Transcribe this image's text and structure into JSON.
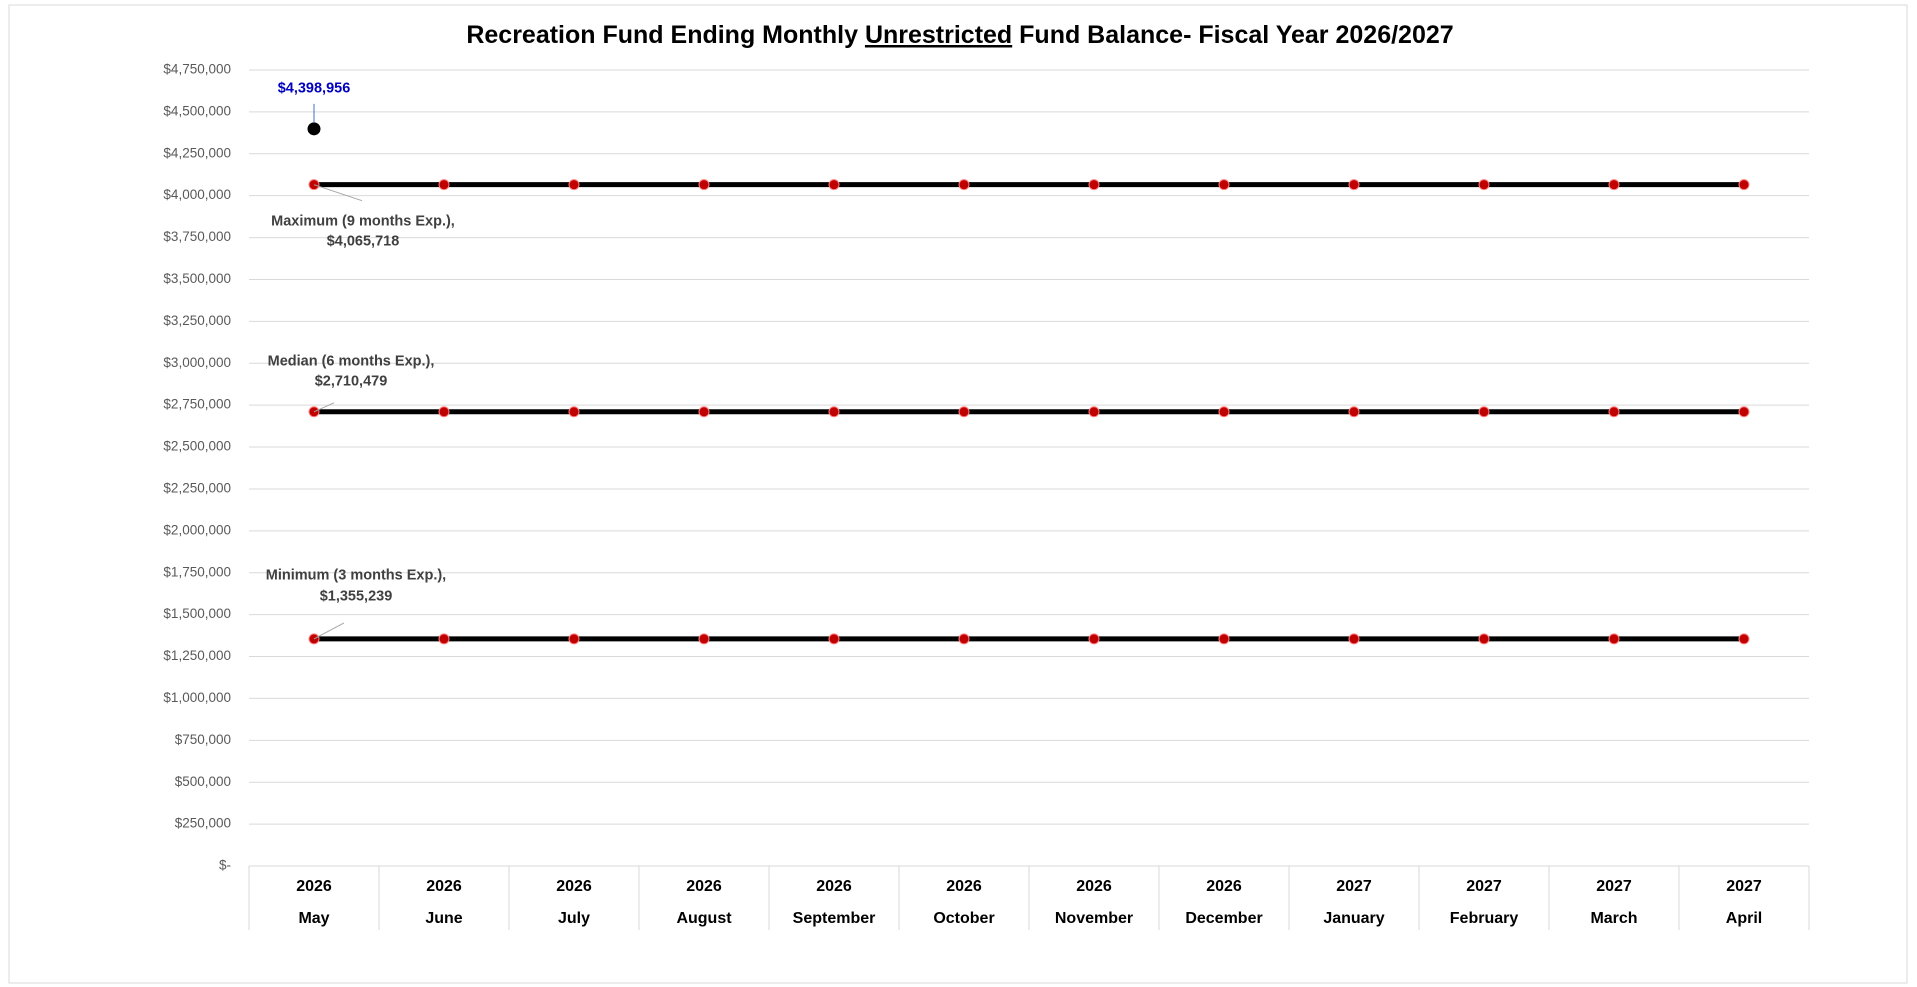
{
  "chart_data": {
    "type": "line",
    "title_parts": [
      {
        "text": "Recreation Fund Ending Monthly ",
        "underline": false
      },
      {
        "text": "Unrestricted",
        "underline": true
      },
      {
        "text": " Fund Balance- Fiscal Year 2026/2027",
        "underline": false
      }
    ],
    "categories": [
      "May",
      "June",
      "July",
      "August",
      "September",
      "October",
      "November",
      "December",
      "January",
      "February",
      "March",
      "April"
    ],
    "years": [
      "2026",
      "2026",
      "2026",
      "2026",
      "2026",
      "2026",
      "2026",
      "2026",
      "2027",
      "2027",
      "2027",
      "2027"
    ],
    "series": [
      {
        "name": "Maximum (9 months Exp.),",
        "color": "#000000",
        "marker_color": "#c00000",
        "values": [
          4065718,
          4065718,
          4065718,
          4065718,
          4065718,
          4065718,
          4065718,
          4065718,
          4065718,
          4065718,
          4065718,
          4065718
        ],
        "value_labels": [
          "$4,065,718",
          null,
          null,
          null,
          null,
          null,
          null,
          null,
          null,
          null,
          null,
          null
        ]
      },
      {
        "name": "Median (6 months Exp.),",
        "color": "#000000",
        "marker_color": "#c00000",
        "values": [
          2710479,
          2710479,
          2710479,
          2710479,
          2710479,
          2710479,
          2710479,
          2710479,
          2710479,
          2710479,
          2710479,
          2710479
        ],
        "value_labels": [
          "$2,710,479",
          null,
          null,
          null,
          null,
          null,
          null,
          null,
          null,
          null,
          null,
          null
        ]
      },
      {
        "name": "Minimum (3 months Exp.),",
        "color": "#000000",
        "marker_color": "#c00000",
        "values": [
          1355239,
          1355239,
          1355239,
          1355239,
          1355239,
          1355239,
          1355239,
          1355239,
          1355239,
          1355239,
          1355239,
          1355239
        ],
        "value_labels": [
          "$1,355,239",
          null,
          null,
          null,
          null,
          null,
          null,
          null,
          null,
          null,
          null,
          null
        ]
      },
      {
        "color": "#000000",
        "marker_color": "#000000",
        "label_color": "#0000c0",
        "values": [
          4398956,
          null,
          null,
          null,
          null,
          null,
          null,
          null,
          null,
          null,
          null,
          null
        ],
        "value_labels": [
          "$4,398,956",
          null,
          null,
          null,
          null,
          null,
          null,
          null,
          null,
          null,
          null,
          null
        ]
      }
    ],
    "ylim": [
      0,
      4750000
    ],
    "yticks": [
      {
        "value": 0,
        "label": "$-"
      },
      {
        "value": 250000,
        "label": "$250,000"
      },
      {
        "value": 500000,
        "label": "$500,000"
      },
      {
        "value": 750000,
        "label": "$750,000"
      },
      {
        "value": 1000000,
        "label": "$1,000,000"
      },
      {
        "value": 1250000,
        "label": "$1,250,000"
      },
      {
        "value": 1500000,
        "label": "$1,500,000"
      },
      {
        "value": 1750000,
        "label": "$1,750,000"
      },
      {
        "value": 2000000,
        "label": "$2,000,000"
      },
      {
        "value": 2250000,
        "label": "$2,250,000"
      },
      {
        "value": 2500000,
        "label": "$2,500,000"
      },
      {
        "value": 2750000,
        "label": "$2,750,000"
      },
      {
        "value": 3000000,
        "label": "$3,000,000"
      },
      {
        "value": 3250000,
        "label": "$3,250,000"
      },
      {
        "value": 3500000,
        "label": "$3,500,000"
      },
      {
        "value": 3750000,
        "label": "$3,750,000"
      },
      {
        "value": 4000000,
        "label": "$4,000,000"
      },
      {
        "value": 4250000,
        "label": "$4,250,000"
      },
      {
        "value": 4500000,
        "label": "$4,500,000"
      },
      {
        "value": 4750000,
        "label": "$4,750,000"
      }
    ],
    "grid": true
  }
}
